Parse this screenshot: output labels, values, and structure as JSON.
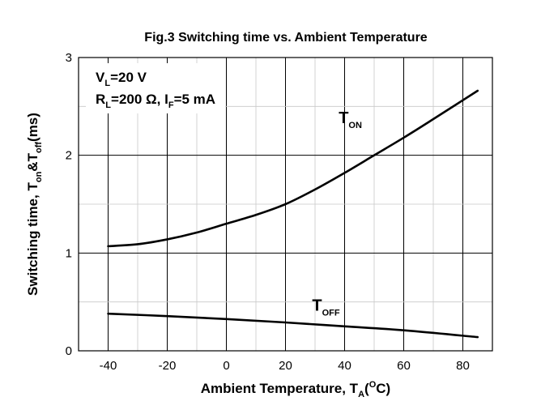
{
  "chart_data": {
    "type": "line",
    "title": "Fig.3 Switching time vs. Ambient Temperature",
    "xlabel": {
      "main": "Ambient Temperature, T",
      "sub": "A",
      "open": "(",
      "sup": "O",
      "rest": "C)"
    },
    "ylabel": {
      "main": "Switching time,  T",
      "sub1": "on",
      "mid": "&T",
      "sub2": "off",
      "rest": "(ms)"
    },
    "xlim": [
      -50,
      90
    ],
    "ylim": [
      0,
      3
    ],
    "x_ticks": [
      -40,
      -20,
      0,
      20,
      40,
      60,
      80
    ],
    "y_ticks": [
      0,
      1,
      2,
      3
    ],
    "grid": true,
    "conditions": [
      {
        "main": "V",
        "sub": "L",
        "rest": "=20 V"
      },
      {
        "main": "R",
        "sub": "L",
        "rest": "=200 Ω, I",
        "sub2": "F",
        "rest2": "=5 mA"
      }
    ],
    "series": [
      {
        "name": "T",
        "name_sub": "ON",
        "label_at": {
          "x": 38,
          "y": 2.33
        },
        "x": [
          -40,
          -30,
          -20,
          -10,
          0,
          10,
          20,
          30,
          40,
          50,
          60,
          70,
          85
        ],
        "y": [
          1.07,
          1.09,
          1.14,
          1.21,
          1.3,
          1.39,
          1.5,
          1.65,
          1.82,
          2.0,
          2.18,
          2.37,
          2.66
        ]
      },
      {
        "name": "T",
        "name_sub": "OFF",
        "label_at": {
          "x": 29,
          "y": 0.41
        },
        "x": [
          -40,
          -20,
          0,
          20,
          40,
          60,
          85
        ],
        "y": [
          0.38,
          0.355,
          0.325,
          0.29,
          0.25,
          0.21,
          0.14
        ]
      }
    ]
  }
}
